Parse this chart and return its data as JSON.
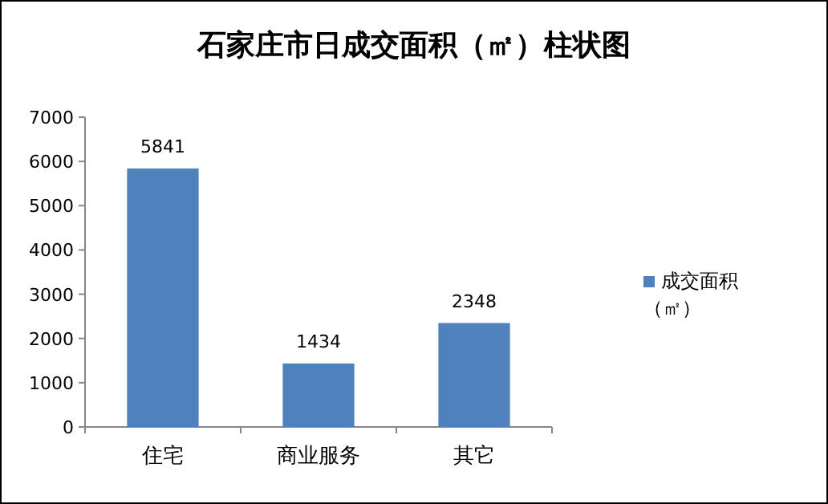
{
  "chart_data": {
    "type": "bar",
    "title": "石家庄市日成交面积（㎡）柱状图",
    "categories": [
      "住宅",
      "商业服务",
      "其它"
    ],
    "series": [
      {
        "name": "成交面积（㎡）",
        "color": "#4f81bd",
        "values": [
          5841,
          1434,
          2348
        ]
      }
    ],
    "ylim": [
      0,
      7000
    ],
    "yticks": [
      0,
      1000,
      2000,
      3000,
      4000,
      5000,
      6000,
      7000
    ],
    "data_labels": true,
    "grid": false,
    "legend": "right"
  }
}
